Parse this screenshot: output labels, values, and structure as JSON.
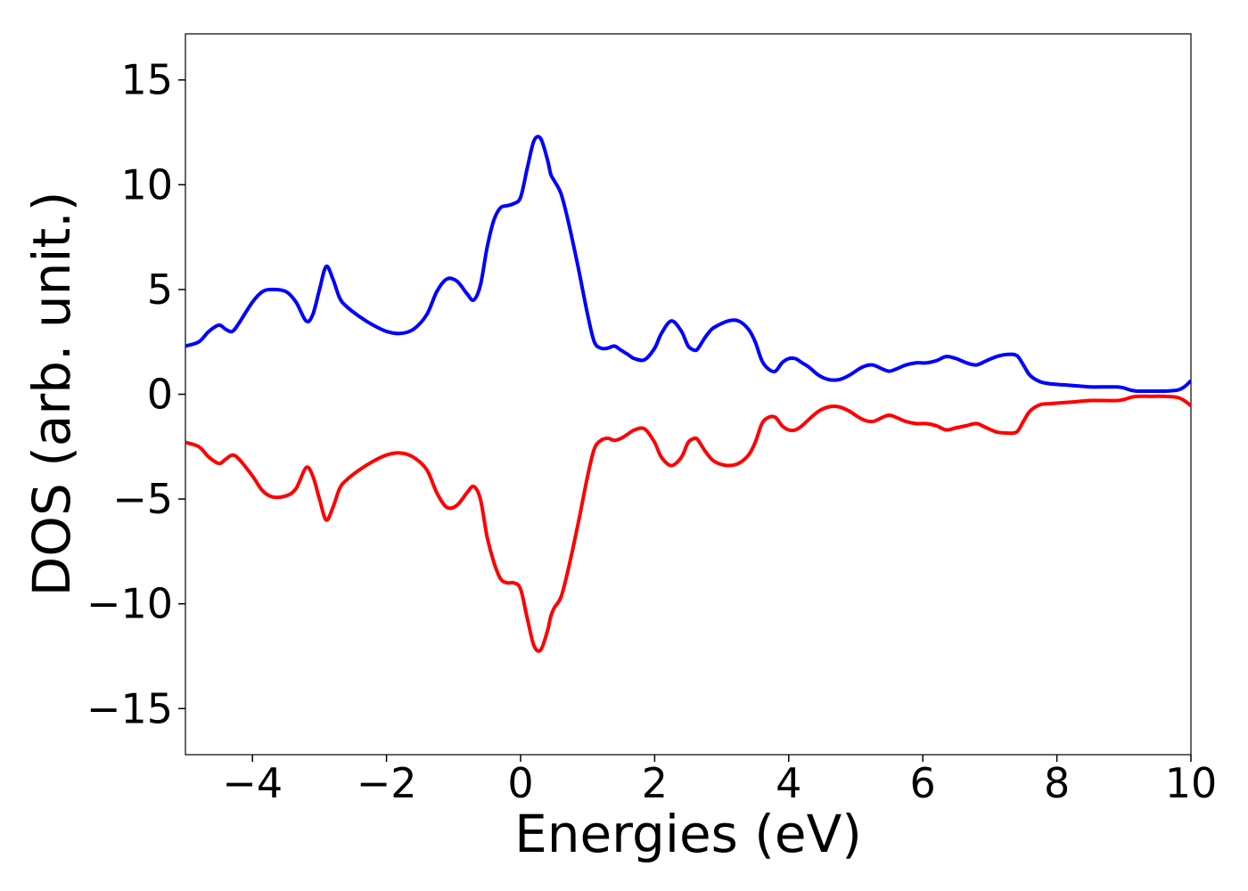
{
  "chart_data": {
    "type": "line",
    "title": "",
    "xlabel": "Energies (eV)",
    "ylabel": "DOS (arb. unit.)",
    "xlim": [
      -5,
      10
    ],
    "ylim": [
      -17.2,
      17.2
    ],
    "grid": false,
    "legend": "none",
    "x_ticks": [
      -4,
      -2,
      0,
      2,
      4,
      6,
      8,
      10
    ],
    "x_tick_labels": [
      "−4",
      "−2",
      "0",
      "2",
      "4",
      "6",
      "8",
      "10"
    ],
    "y_ticks": [
      -15,
      -10,
      -5,
      0,
      5,
      10,
      15
    ],
    "y_tick_labels": [
      "−15",
      "−10",
      "−5",
      "0",
      "5",
      "10",
      "15"
    ],
    "series": [
      {
        "color": "#0000ff",
        "x": [
          -5.0,
          -4.8,
          -4.65,
          -4.5,
          -4.4,
          -4.3,
          -4.2,
          -4.0,
          -3.85,
          -3.7,
          -3.5,
          -3.35,
          -3.2,
          -3.1,
          -3.0,
          -2.9,
          -2.8,
          -2.7,
          -2.6,
          -2.4,
          -2.2,
          -2.0,
          -1.8,
          -1.6,
          -1.4,
          -1.25,
          -1.1,
          -0.95,
          -0.8,
          -0.7,
          -0.6,
          -0.5,
          -0.4,
          -0.3,
          -0.2,
          -0.1,
          0.0,
          0.1,
          0.2,
          0.3,
          0.4,
          0.45,
          0.5,
          0.6,
          0.7,
          0.85,
          1.0,
          1.1,
          1.2,
          1.3,
          1.4,
          1.5,
          1.6,
          1.7,
          1.85,
          2.0,
          2.1,
          2.25,
          2.4,
          2.5,
          2.6,
          2.65,
          2.75,
          2.85,
          2.95,
          3.1,
          3.25,
          3.4,
          3.5,
          3.6,
          3.7,
          3.8,
          3.9,
          4.0,
          4.1,
          4.2,
          4.3,
          4.45,
          4.6,
          4.75,
          4.9,
          5.1,
          5.25,
          5.4,
          5.5,
          5.6,
          5.75,
          5.9,
          6.05,
          6.2,
          6.35,
          6.5,
          6.65,
          6.8,
          6.95,
          7.1,
          7.25,
          7.4,
          7.5,
          7.6,
          7.75,
          7.9,
          8.1,
          8.3,
          8.5,
          8.7,
          8.9,
          9.0,
          9.1,
          9.2,
          9.4,
          9.6,
          9.8,
          9.9,
          10.0
        ],
        "y": [
          2.3,
          2.5,
          3.0,
          3.3,
          3.1,
          3.0,
          3.4,
          4.4,
          4.9,
          5.0,
          4.9,
          4.4,
          3.5,
          3.8,
          5.0,
          6.1,
          5.5,
          4.6,
          4.2,
          3.7,
          3.3,
          3.0,
          2.9,
          3.1,
          3.8,
          4.9,
          5.5,
          5.4,
          4.8,
          4.5,
          5.2,
          7.0,
          8.3,
          8.9,
          9.0,
          9.1,
          9.4,
          10.8,
          12.1,
          12.2,
          11.2,
          10.5,
          10.2,
          9.6,
          8.4,
          6.2,
          3.8,
          2.5,
          2.2,
          2.2,
          2.3,
          2.1,
          1.9,
          1.7,
          1.65,
          2.2,
          2.9,
          3.5,
          3.0,
          2.3,
          2.1,
          2.2,
          2.7,
          3.1,
          3.3,
          3.5,
          3.5,
          3.1,
          2.5,
          1.6,
          1.2,
          1.1,
          1.5,
          1.7,
          1.7,
          1.5,
          1.3,
          0.9,
          0.7,
          0.7,
          0.9,
          1.3,
          1.4,
          1.2,
          1.1,
          1.2,
          1.4,
          1.5,
          1.5,
          1.6,
          1.8,
          1.7,
          1.5,
          1.4,
          1.6,
          1.8,
          1.9,
          1.85,
          1.4,
          0.9,
          0.6,
          0.5,
          0.45,
          0.4,
          0.35,
          0.35,
          0.35,
          0.3,
          0.2,
          0.15,
          0.15,
          0.15,
          0.2,
          0.35,
          0.65
        ]
      },
      {
        "color": "#ff0000",
        "x": [
          -5.0,
          -4.8,
          -4.65,
          -4.5,
          -4.4,
          -4.3,
          -4.2,
          -4.0,
          -3.85,
          -3.7,
          -3.5,
          -3.35,
          -3.2,
          -3.1,
          -3.0,
          -2.9,
          -2.8,
          -2.7,
          -2.6,
          -2.4,
          -2.2,
          -2.0,
          -1.8,
          -1.6,
          -1.4,
          -1.25,
          -1.1,
          -0.95,
          -0.8,
          -0.7,
          -0.6,
          -0.5,
          -0.4,
          -0.3,
          -0.2,
          -0.1,
          0.0,
          0.1,
          0.2,
          0.3,
          0.4,
          0.45,
          0.5,
          0.6,
          0.7,
          0.85,
          1.0,
          1.1,
          1.2,
          1.3,
          1.4,
          1.5,
          1.6,
          1.7,
          1.85,
          2.0,
          2.1,
          2.25,
          2.4,
          2.5,
          2.6,
          2.65,
          2.75,
          2.85,
          2.95,
          3.1,
          3.25,
          3.4,
          3.5,
          3.6,
          3.7,
          3.8,
          3.9,
          4.0,
          4.1,
          4.2,
          4.3,
          4.45,
          4.6,
          4.75,
          4.9,
          5.1,
          5.25,
          5.4,
          5.5,
          5.6,
          5.75,
          5.9,
          6.05,
          6.2,
          6.35,
          6.5,
          6.65,
          6.8,
          6.95,
          7.1,
          7.25,
          7.4,
          7.5,
          7.6,
          7.75,
          7.9,
          8.1,
          8.3,
          8.5,
          8.7,
          8.9,
          9.0,
          9.1,
          9.2,
          9.4,
          9.6,
          9.8,
          9.9,
          10.0
        ],
        "y": [
          -2.3,
          -2.5,
          -3.0,
          -3.3,
          -3.1,
          -2.9,
          -3.1,
          -3.9,
          -4.6,
          -4.9,
          -4.85,
          -4.5,
          -3.5,
          -3.9,
          -5.0,
          -6.0,
          -5.4,
          -4.5,
          -4.1,
          -3.6,
          -3.2,
          -2.9,
          -2.8,
          -3.0,
          -3.6,
          -4.7,
          -5.4,
          -5.3,
          -4.7,
          -4.4,
          -5.0,
          -6.8,
          -8.0,
          -8.8,
          -9.0,
          -9.0,
          -9.3,
          -10.7,
          -12.0,
          -12.2,
          -11.3,
          -10.6,
          -10.2,
          -9.7,
          -8.5,
          -6.3,
          -3.9,
          -2.6,
          -2.2,
          -2.1,
          -2.2,
          -2.1,
          -1.9,
          -1.7,
          -1.65,
          -2.3,
          -3.0,
          -3.4,
          -3.0,
          -2.3,
          -2.1,
          -2.2,
          -2.7,
          -3.1,
          -3.3,
          -3.4,
          -3.3,
          -2.9,
          -2.3,
          -1.4,
          -1.1,
          -1.1,
          -1.5,
          -1.7,
          -1.7,
          -1.5,
          -1.2,
          -0.8,
          -0.6,
          -0.6,
          -0.8,
          -1.2,
          -1.3,
          -1.1,
          -1.0,
          -1.1,
          -1.3,
          -1.4,
          -1.4,
          -1.5,
          -1.7,
          -1.6,
          -1.5,
          -1.4,
          -1.6,
          -1.8,
          -1.85,
          -1.8,
          -1.3,
          -0.8,
          -0.5,
          -0.45,
          -0.4,
          -0.35,
          -0.3,
          -0.3,
          -0.3,
          -0.25,
          -0.15,
          -0.1,
          -0.1,
          -0.1,
          -0.15,
          -0.3,
          -0.55
        ]
      }
    ]
  }
}
